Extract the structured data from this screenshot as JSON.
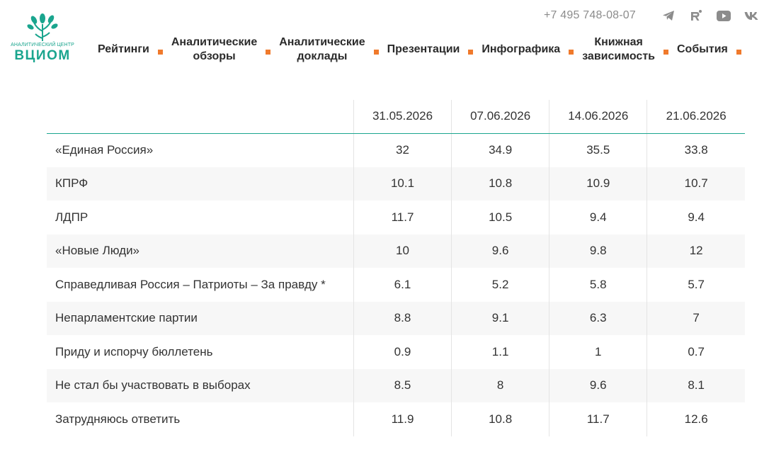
{
  "header": {
    "logo_subtitle": "АНАЛИТИЧЕСКИЙ ЦЕНТР",
    "logo_brand": "ВЦИОМ",
    "phone": "+7 495 748-08-07",
    "social_icons": [
      "telegram-icon",
      "rutube-icon",
      "youtube-icon",
      "vk-icon"
    ],
    "accent_color": "#1aa58e",
    "separator_color": "#f07a2c"
  },
  "nav": [
    {
      "line1": "Рейтинги",
      "line2": ""
    },
    {
      "line1": "Аналитические",
      "line2": "обзоры"
    },
    {
      "line1": "Аналитические",
      "line2": "доклады"
    },
    {
      "line1": "Презентации",
      "line2": ""
    },
    {
      "line1": "Инфографика",
      "line2": ""
    },
    {
      "line1": "Книжная",
      "line2": "зависимость"
    },
    {
      "line1": "События",
      "line2": ""
    }
  ],
  "table": {
    "corner": "",
    "columns": [
      "31.05.2026",
      "07.06.2026",
      "14.06.2026",
      "21.06.2026"
    ],
    "rows": [
      {
        "label": "«Единая Россия»",
        "values": [
          "32",
          "34.9",
          "35.5",
          "33.8"
        ]
      },
      {
        "label": "КПРФ",
        "values": [
          "10.1",
          "10.8",
          "10.9",
          "10.7"
        ]
      },
      {
        "label": "ЛДПР",
        "values": [
          "11.7",
          "10.5",
          "9.4",
          "9.4"
        ]
      },
      {
        "label": "«Новые Люди»",
        "values": [
          "10",
          "9.6",
          "9.8",
          "12"
        ]
      },
      {
        "label": "Справедливая Россия – Патриоты – За правду *",
        "values": [
          "6.1",
          "5.2",
          "5.8",
          "5.7"
        ]
      },
      {
        "label": "Непарламентские партии",
        "values": [
          "8.8",
          "9.1",
          "6.3",
          "7"
        ]
      },
      {
        "label": "Приду и испорчу бюллетень",
        "values": [
          "0.9",
          "1.1",
          "1",
          "0.7"
        ]
      },
      {
        "label": "Не стал бы участвовать в выборах",
        "values": [
          "8.5",
          "8",
          "9.6",
          "8.1"
        ]
      },
      {
        "label": "Затрудняюсь ответить",
        "values": [
          "11.9",
          "10.8",
          "11.7",
          "12.6"
        ]
      }
    ]
  }
}
